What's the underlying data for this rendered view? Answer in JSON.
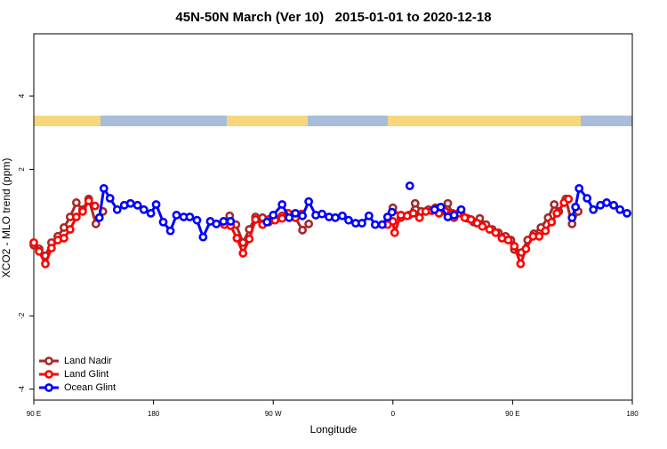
{
  "chart_data": {
    "type": "line",
    "title": "45N-50N March (Ver 10)   2015-01-01 to 2020-12-18",
    "x_label": "Longitude",
    "y_label": "XCO2 - MLO trend (ppm)",
    "xlim": [
      90,
      540
    ],
    "ylim": [
      -4.3,
      5.7
    ],
    "xticks": [
      {
        "value": 90,
        "label": "90 E"
      },
      {
        "value": 180,
        "label": "180"
      },
      {
        "value": 270,
        "label": "90 W"
      },
      {
        "value": 360,
        "label": "0"
      },
      {
        "value": 450,
        "label": "90 E"
      },
      {
        "value": 540,
        "label": "180"
      }
    ],
    "yticks": [
      -4,
      -2,
      2,
      4
    ],
    "legend": "bottomleft",
    "series": [
      {
        "name": "Land Nadir",
        "color": "#a52a2a",
        "x": [
          90,
          94,
          98.7,
          103.3,
          108,
          112.7,
          117.3,
          122,
          126.7,
          131.3,
          136.7,
          142,
          190,
          237.3,
          242,
          247.3,
          252,
          256.7,
          262,
          266.7,
          272,
          276.7,
          281.3,
          286.7,
          292,
          296.7,
          330,
          360,
          366,
          372,
          376.7,
          381.3,
          386.7,
          392,
          396.7,
          401.3,
          406,
          411.3,
          416,
          420.7,
          425.3,
          430,
          434.7,
          439.3,
          444.7,
          448.7,
          451.3,
          456.7,
          461.3,
          466,
          471.3,
          476.7,
          481.3,
          484.7,
          490,
          494.7,
          499.3
        ],
        "values": [
          -0.07,
          -0.17,
          -0.36,
          0,
          0.17,
          0.41,
          0.7,
          1.09,
          0.9,
          1.19,
          0.51,
          0.85,
          null,
          0.73,
          0.49,
          0,
          0.36,
          0.7,
          0.68,
          0.56,
          0.63,
          0.73,
          0.78,
          0.68,
          0.34,
          0.51,
          null,
          0.95,
          0.68,
          0.75,
          1.07,
          0.85,
          0.9,
          0.95,
          0.95,
          1.07,
          0.68,
          0.8,
          0.66,
          0.56,
          0.66,
          0.49,
          0.36,
          0.27,
          0.17,
          0.07,
          -0.19,
          -0.27,
          0.07,
          0.24,
          0.41,
          0.68,
          1.04,
          0.85,
          1.19,
          0.51,
          0.85
        ]
      },
      {
        "name": "Land Glint",
        "color": "#ff0000",
        "x": [
          90,
          94,
          98.7,
          103.3,
          108,
          112.7,
          117.3,
          122,
          126.7,
          131.3,
          136,
          185,
          233.3,
          238,
          242.7,
          247.3,
          252,
          256.7,
          262,
          266.7,
          271.3,
          276.7,
          281.3,
          286.7,
          291.3,
          325,
          356,
          360,
          361.3,
          366,
          370.7,
          375.3,
          380,
          384.7,
          389.3,
          394.7,
          399.3,
          404.7,
          409.3,
          414,
          418.7,
          423.3,
          427.3,
          432.7,
          437.3,
          442,
          446.7,
          451.3,
          456,
          460,
          465.3,
          470,
          474.7,
          479.3,
          483.3,
          488.7,
          492
        ],
        "values": [
          0,
          -0.24,
          -0.58,
          -0.15,
          0.07,
          0.12,
          0.36,
          0.7,
          0.85,
          1.14,
          1.0,
          null,
          0.49,
          0.46,
          0.12,
          -0.29,
          0.1,
          0.63,
          0.49,
          0.63,
          0.61,
          0.66,
          0.8,
          0.68,
          0.78,
          null,
          0.49,
          0.58,
          0.27,
          0.75,
          0.73,
          0.8,
          0.68,
          0.85,
          0.87,
          0.8,
          0.85,
          0.8,
          0.8,
          0.68,
          0.63,
          0.53,
          0.44,
          0.36,
          0.27,
          0.12,
          0.07,
          -0.1,
          -0.58,
          -0.17,
          0.17,
          0.17,
          0.32,
          0.56,
          0.8,
          1.09,
          1.19
        ]
      },
      {
        "name": "Ocean Glint",
        "color": "#0000ff",
        "x": [
          139.3,
          142.7,
          147.3,
          152.7,
          158,
          162.7,
          168,
          172.7,
          178,
          182,
          187.3,
          192.7,
          197.3,
          202.7,
          207.3,
          212.7,
          217.3,
          222.7,
          227.3,
          232.7,
          238,
          250,
          265.3,
          270,
          276.7,
          282,
          286.7,
          292,
          296.7,
          302,
          306.7,
          312,
          316.7,
          322,
          326.7,
          332,
          336.7,
          342,
          346.7,
          352,
          356,
          359.3,
          366,
          372.7,
          380,
          391.3,
          396,
          401.3,
          406,
          411.3,
          450,
          494.7,
          497.3,
          500,
          506,
          510.7,
          516,
          520.7,
          526,
          530.7,
          536
        ],
        "values": [
          0.68,
          1.48,
          1.21,
          0.9,
          1.02,
          1.07,
          1.02,
          0.9,
          0.8,
          1.04,
          0.56,
          0.32,
          0.75,
          0.7,
          0.7,
          0.61,
          0.15,
          0.58,
          0.51,
          0.58,
          0.58,
          null,
          0.56,
          0.75,
          1.04,
          0.68,
          0.8,
          0.73,
          1.12,
          0.75,
          0.78,
          0.7,
          0.68,
          0.73,
          0.61,
          0.53,
          0.53,
          0.73,
          0.49,
          0.49,
          0.7,
          0.83,
          null,
          1.55,
          null,
          0.9,
          0.97,
          0.7,
          0.75,
          0.9,
          null,
          0.68,
          0.97,
          1.48,
          1.21,
          0.9,
          1.02,
          1.09,
          1.02,
          0.9,
          0.8
        ]
      }
    ]
  }
}
